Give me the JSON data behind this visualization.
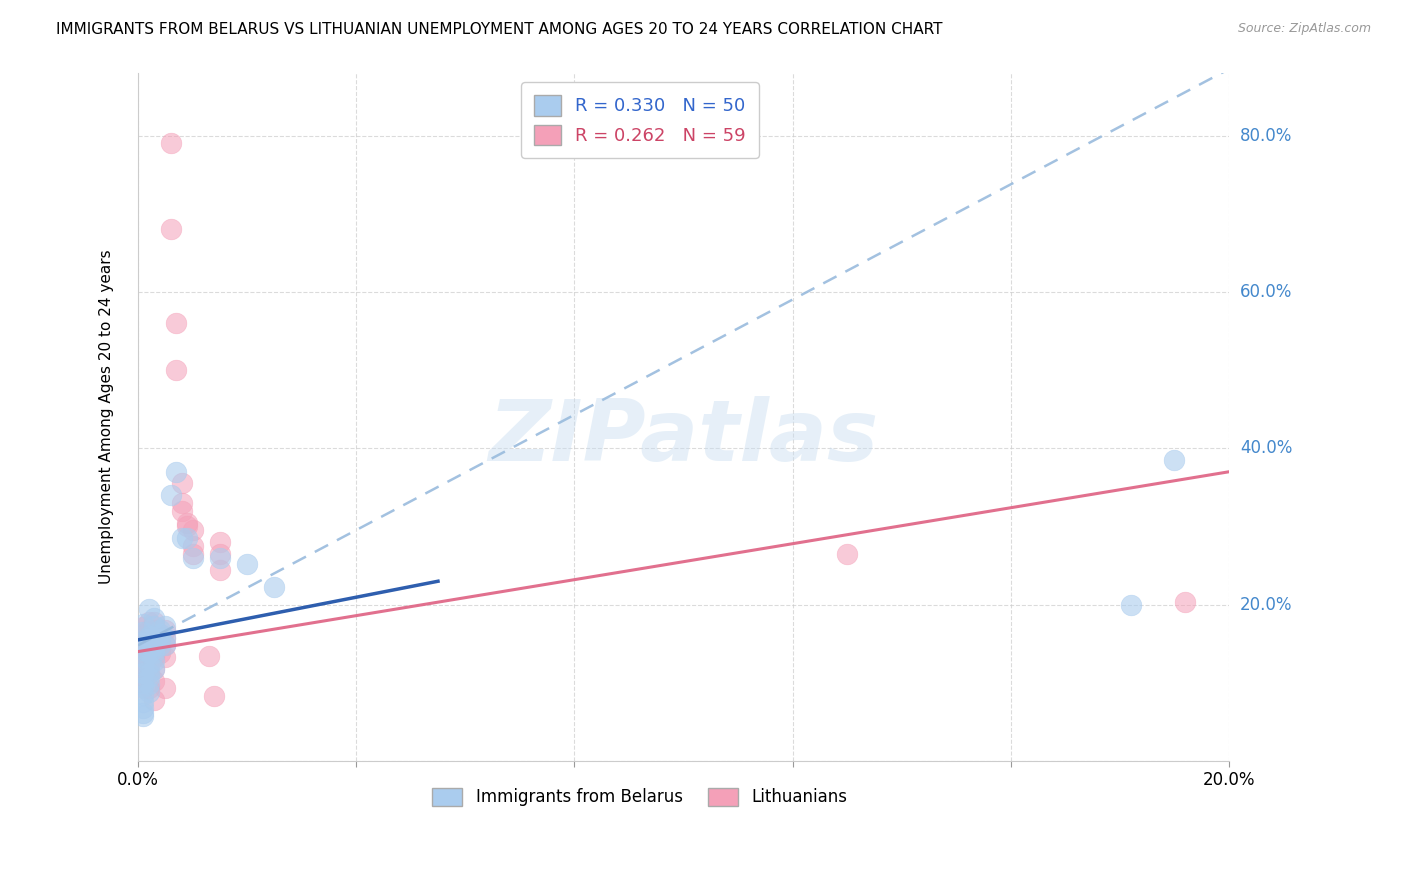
{
  "title": "IMMIGRANTS FROM BELARUS VS LITHUANIAN UNEMPLOYMENT AMONG AGES 20 TO 24 YEARS CORRELATION CHART",
  "source": "Source: ZipAtlas.com",
  "ylabel": "Unemployment Among Ages 20 to 24 years",
  "xlim": [
    0.0,
    0.2
  ],
  "ylim": [
    0.0,
    0.88
  ],
  "xtick_vals": [
    0.0,
    0.04,
    0.08,
    0.12,
    0.16,
    0.2
  ],
  "xticklabels": [
    "0.0%",
    "",
    "",
    "",
    "",
    "20.0%"
  ],
  "ytick_vals": [
    0.0,
    0.2,
    0.4,
    0.6,
    0.8
  ],
  "yticklabels_right": [
    "",
    "20.0%",
    "40.0%",
    "60.0%",
    "80.0%"
  ],
  "legend_label1": "Immigrants from Belarus",
  "legend_label2": "Lithuanians",
  "R1": "0.330",
  "N1": "50",
  "R2": "0.262",
  "N2": "59",
  "color1": "#aaccee",
  "color2": "#f4a0b8",
  "line1_solid_color": "#2255aa",
  "line1_dash_color": "#99bbdd",
  "line2_color": "#e06888",
  "watermark": "ZIPatlas",
  "watermark_color": "#c8ddf0",
  "grid_color": "#cccccc",
  "title_fontsize": 11,
  "source_fontsize": 9,
  "blue_points": [
    [
      0.001,
      0.175
    ],
    [
      0.001,
      0.165
    ],
    [
      0.002,
      0.195
    ],
    [
      0.003,
      0.183
    ],
    [
      0.002,
      0.16
    ],
    [
      0.003,
      0.158
    ],
    [
      0.004,
      0.163
    ],
    [
      0.004,
      0.168
    ],
    [
      0.005,
      0.173
    ],
    [
      0.003,
      0.173
    ],
    [
      0.002,
      0.158
    ],
    [
      0.001,
      0.152
    ],
    [
      0.002,
      0.148
    ],
    [
      0.003,
      0.148
    ],
    [
      0.004,
      0.158
    ],
    [
      0.005,
      0.158
    ],
    [
      0.001,
      0.142
    ],
    [
      0.002,
      0.143
    ],
    [
      0.003,
      0.143
    ],
    [
      0.004,
      0.148
    ],
    [
      0.005,
      0.148
    ],
    [
      0.001,
      0.133
    ],
    [
      0.002,
      0.138
    ],
    [
      0.003,
      0.138
    ],
    [
      0.001,
      0.123
    ],
    [
      0.002,
      0.123
    ],
    [
      0.003,
      0.128
    ],
    [
      0.001,
      0.113
    ],
    [
      0.002,
      0.113
    ],
    [
      0.003,
      0.118
    ],
    [
      0.001,
      0.1
    ],
    [
      0.002,
      0.108
    ],
    [
      0.001,
      0.095
    ],
    [
      0.002,
      0.098
    ],
    [
      0.001,
      0.085
    ],
    [
      0.002,
      0.088
    ],
    [
      0.001,
      0.075
    ],
    [
      0.001,
      0.068
    ],
    [
      0.001,
      0.062
    ],
    [
      0.001,
      0.058
    ],
    [
      0.006,
      0.34
    ],
    [
      0.007,
      0.37
    ],
    [
      0.008,
      0.285
    ],
    [
      0.009,
      0.285
    ],
    [
      0.01,
      0.26
    ],
    [
      0.015,
      0.26
    ],
    [
      0.02,
      0.252
    ],
    [
      0.025,
      0.222
    ],
    [
      0.19,
      0.385
    ],
    [
      0.182,
      0.2
    ]
  ],
  "pink_points": [
    [
      0.001,
      0.172
    ],
    [
      0.001,
      0.163
    ],
    [
      0.002,
      0.178
    ],
    [
      0.002,
      0.168
    ],
    [
      0.003,
      0.178
    ],
    [
      0.003,
      0.168
    ],
    [
      0.004,
      0.163
    ],
    [
      0.004,
      0.158
    ],
    [
      0.005,
      0.168
    ],
    [
      0.005,
      0.158
    ],
    [
      0.001,
      0.152
    ],
    [
      0.002,
      0.152
    ],
    [
      0.003,
      0.158
    ],
    [
      0.004,
      0.152
    ],
    [
      0.005,
      0.148
    ],
    [
      0.001,
      0.148
    ],
    [
      0.002,
      0.148
    ],
    [
      0.003,
      0.148
    ],
    [
      0.001,
      0.143
    ],
    [
      0.002,
      0.143
    ],
    [
      0.003,
      0.143
    ],
    [
      0.001,
      0.138
    ],
    [
      0.002,
      0.138
    ],
    [
      0.003,
      0.138
    ],
    [
      0.004,
      0.138
    ],
    [
      0.005,
      0.133
    ],
    [
      0.001,
      0.128
    ],
    [
      0.002,
      0.128
    ],
    [
      0.003,
      0.133
    ],
    [
      0.001,
      0.123
    ],
    [
      0.002,
      0.123
    ],
    [
      0.003,
      0.118
    ],
    [
      0.001,
      0.113
    ],
    [
      0.002,
      0.113
    ],
    [
      0.001,
      0.103
    ],
    [
      0.003,
      0.103
    ],
    [
      0.005,
      0.093
    ],
    [
      0.001,
      0.093
    ],
    [
      0.002,
      0.093
    ],
    [
      0.003,
      0.078
    ],
    [
      0.006,
      0.79
    ],
    [
      0.006,
      0.68
    ],
    [
      0.007,
      0.56
    ],
    [
      0.007,
      0.5
    ],
    [
      0.008,
      0.355
    ],
    [
      0.008,
      0.33
    ],
    [
      0.008,
      0.32
    ],
    [
      0.009,
      0.305
    ],
    [
      0.009,
      0.3
    ],
    [
      0.01,
      0.295
    ],
    [
      0.01,
      0.275
    ],
    [
      0.01,
      0.265
    ],
    [
      0.015,
      0.28
    ],
    [
      0.015,
      0.265
    ],
    [
      0.015,
      0.245
    ],
    [
      0.013,
      0.135
    ],
    [
      0.014,
      0.083
    ],
    [
      0.13,
      0.265
    ],
    [
      0.192,
      0.203
    ]
  ],
  "blue_line_x": [
    0.0,
    0.2
  ],
  "blue_line_y": [
    0.148,
    0.885
  ],
  "blue_solid_line_x": [
    0.0,
    0.055
  ],
  "blue_solid_line_y": [
    0.155,
    0.23
  ],
  "pink_line_x": [
    0.0,
    0.2
  ],
  "pink_line_y": [
    0.14,
    0.37
  ]
}
